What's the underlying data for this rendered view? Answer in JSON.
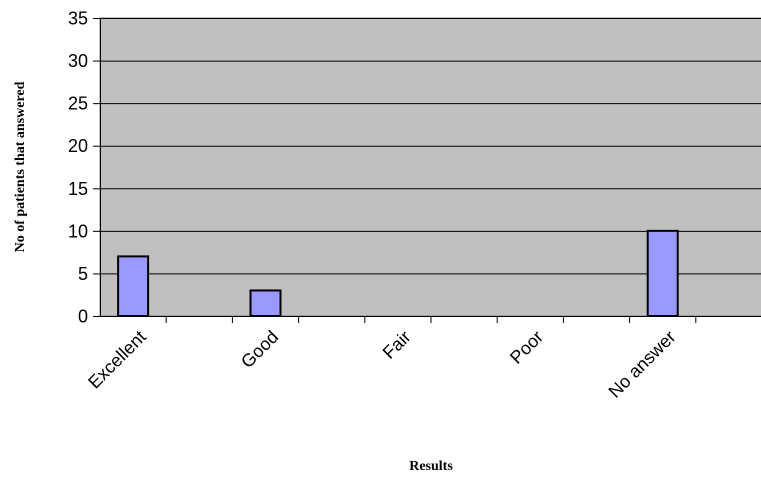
{
  "chart_data": {
    "type": "bar",
    "categories": [
      "Excellent",
      "Good",
      "Fair",
      "Poor",
      "No answer"
    ],
    "values": [
      7,
      3,
      0,
      0,
      10
    ],
    "title": "",
    "xlabel": "Results",
    "ylabel": "No of patients that answered",
    "ylim": [
      0,
      35
    ],
    "yticks": [
      "0",
      "5",
      "10",
      "15",
      "20",
      "25",
      "30",
      "35"
    ],
    "grid": true,
    "legend": "none",
    "colors": {
      "plot_background": "#c0c0c0",
      "bar_fill": "#9999ff",
      "bar_stroke": "#000000",
      "gridline": "#000000"
    }
  }
}
